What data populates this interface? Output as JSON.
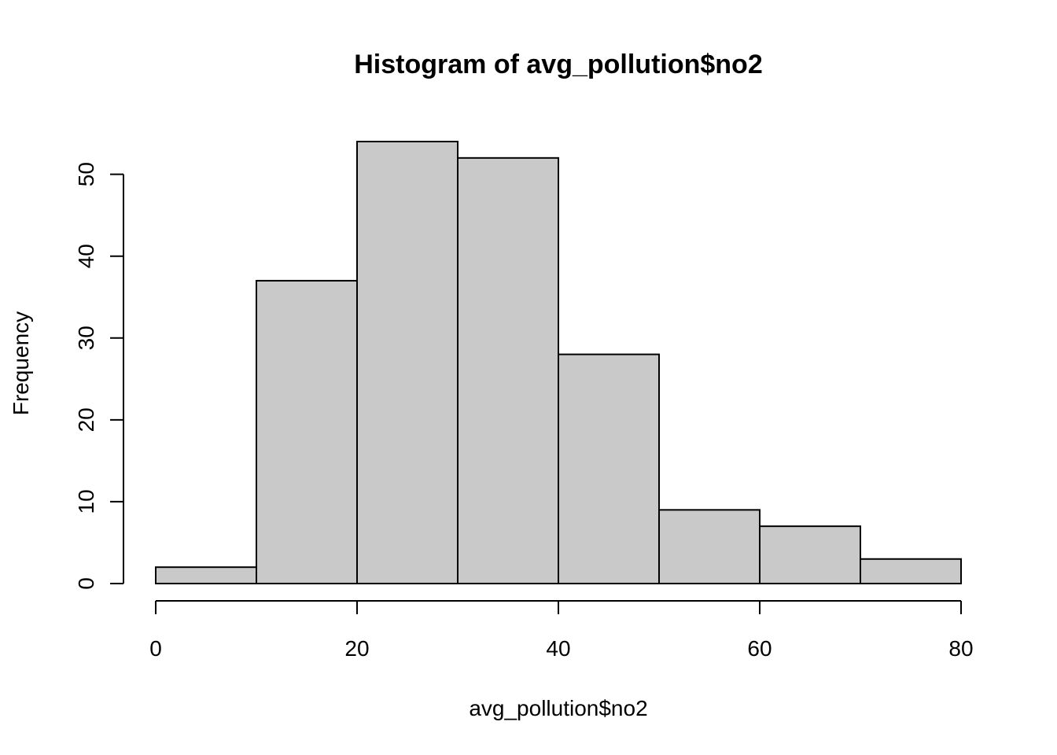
{
  "chart_data": {
    "type": "bar",
    "title": "Histogram of avg_pollution$no2",
    "xlabel": "avg_pollution$no2",
    "ylabel": "Frequency",
    "bins": [
      {
        "start": 0,
        "end": 10,
        "count": 2
      },
      {
        "start": 10,
        "end": 20,
        "count": 37
      },
      {
        "start": 20,
        "end": 30,
        "count": 54
      },
      {
        "start": 30,
        "end": 40,
        "count": 52
      },
      {
        "start": 40,
        "end": 50,
        "count": 28
      },
      {
        "start": 50,
        "end": 60,
        "count": 9
      },
      {
        "start": 60,
        "end": 70,
        "count": 7
      },
      {
        "start": 70,
        "end": 80,
        "count": 3
      }
    ],
    "xlim": [
      0,
      80
    ],
    "ylim": [
      0,
      54
    ],
    "xticks": [
      0,
      20,
      40,
      60,
      80
    ],
    "yticks": [
      0,
      10,
      20,
      30,
      40,
      50
    ],
    "bar_color": "#c9c9c9",
    "grid": false
  }
}
